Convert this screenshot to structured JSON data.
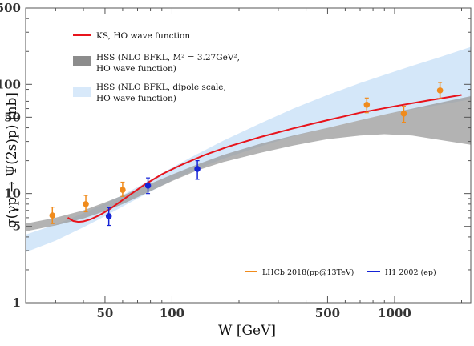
{
  "chart_data": {
    "type": "line",
    "title": "",
    "xlabel": "W [GeV]",
    "ylabel": "σ(γp → Ψ(2s)p) [nb]",
    "xscale": "log",
    "yscale": "log",
    "xlim": [
      22,
      2200
    ],
    "ylim": [
      1,
      500
    ],
    "grid": false,
    "legend_top_placement": "top-left",
    "legend_bottom_placement": "bottom-right",
    "xticks": [
      {
        "value": 50,
        "label": "50"
      },
      {
        "value": 100,
        "label": "100"
      },
      {
        "value": 500,
        "label": "500"
      },
      {
        "value": 1000,
        "label": "1000"
      }
    ],
    "yticks": [
      {
        "value": 1,
        "label": "1"
      },
      {
        "value": 5,
        "label": "5"
      },
      {
        "value": 10,
        "label": "10"
      },
      {
        "value": 50,
        "label": "50"
      },
      {
        "value": 100,
        "label": "100"
      },
      {
        "value": 500,
        "label": "500"
      }
    ],
    "series": [
      {
        "name": "KS, HO wave function",
        "kind": "line",
        "color": "#e8141c",
        "x": [
          34,
          36,
          38,
          40,
          43,
          47,
          52,
          58,
          65,
          75,
          90,
          110,
          140,
          180,
          250,
          350,
          500,
          700,
          1000,
          1400,
          2000
        ],
        "y": [
          6.0,
          5.6,
          5.5,
          5.55,
          5.8,
          6.3,
          7.1,
          8.3,
          9.8,
          12.0,
          15.0,
          18.3,
          22.5,
          27,
          33,
          39.5,
          47,
          55,
          63,
          71,
          80
        ]
      },
      {
        "name": "HSS (NLO BFKL, M² = 3.27GeV², HO wave function)",
        "kind": "band",
        "color": "#9a9a9a",
        "x": [
          22,
          30,
          40,
          50,
          60,
          80,
          100,
          130,
          170,
          250,
          350,
          500,
          700,
          900,
          1200,
          1600,
          2200
        ],
        "y_low": [
          4.5,
          5.1,
          5.9,
          6.9,
          8.0,
          10.5,
          13.0,
          16.3,
          19.4,
          23.6,
          27.5,
          31.5,
          34,
          35,
          34,
          31,
          28
        ],
        "y_high": [
          5.3,
          6.0,
          7.0,
          8.3,
          9.6,
          12.3,
          14.9,
          18.5,
          22.6,
          28.6,
          34,
          40,
          47,
          53,
          60,
          68,
          78
        ]
      },
      {
        "name": "HSS (NLO BFKL, dipole scale, HO wave function)",
        "kind": "band",
        "color": "#d4e7f9",
        "x": [
          22,
          30,
          40,
          50,
          60,
          80,
          100,
          130,
          170,
          250,
          350,
          500,
          700,
          900,
          1200,
          1600,
          2200
        ],
        "y_low": [
          2.9,
          3.7,
          4.9,
          6.2,
          7.6,
          10.4,
          13.2,
          16.8,
          20.8,
          27.0,
          33.5,
          40,
          47,
          53,
          59,
          65,
          73
        ],
        "y_high": [
          4.2,
          5.2,
          6.6,
          8.1,
          9.7,
          13.3,
          17.3,
          23.0,
          30.5,
          44,
          60,
          80,
          103,
          122,
          148,
          178,
          220
        ]
      },
      {
        "name": "LHCb 2018(pp@13TeV)",
        "kind": "points",
        "color": "#f08b1c",
        "x": [
          29,
          41,
          60,
          750,
          1100,
          1600
        ],
        "y": [
          6.3,
          8.0,
          10.8,
          65,
          54,
          88
        ],
        "yerr_low": [
          5.3,
          6.8,
          9.4,
          55,
          45,
          74
        ],
        "yerr_high": [
          7.5,
          9.6,
          12.7,
          75,
          63,
          104
        ]
      },
      {
        "name": "H1 2002 (ep)",
        "kind": "points",
        "color": "#1523d6",
        "x": [
          52,
          78,
          130
        ],
        "y": [
          6.2,
          11.8,
          16.8
        ],
        "yerr_low": [
          5.1,
          10.0,
          13.5
        ],
        "yerr_high": [
          7.4,
          13.9,
          20.0
        ]
      }
    ]
  },
  "legend_top": [
    {
      "text": "KS, HO wave function"
    },
    {
      "text": "HSS (NLO BFKL, M² = 3.27GeV²,",
      "text2": "HO wave function)"
    },
    {
      "text": "HSS (NLO BFKL, dipole scale,",
      "text2": "HO wave function)"
    }
  ],
  "legend_bottom": [
    {
      "text": "LHCb 2018(pp@13TeV)"
    },
    {
      "text": "H1 2002 (ep)"
    }
  ]
}
